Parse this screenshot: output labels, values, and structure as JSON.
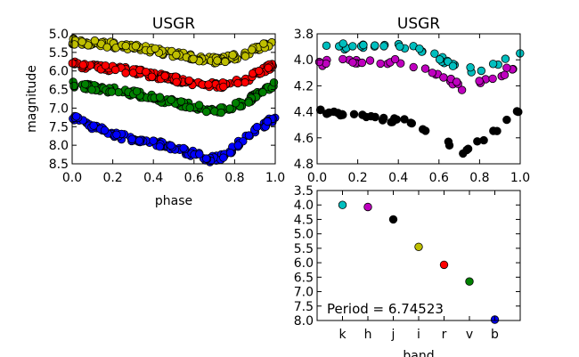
{
  "colors": {
    "yellow": "#bfbf00",
    "red": "#ff0000",
    "green": "#008000",
    "blue": "#0000ff",
    "cyan": "#00bfbf",
    "magenta": "#bf00bf",
    "black": "#000000"
  },
  "chart_data": [
    {
      "id": "left",
      "type": "scatter",
      "title": "USGR",
      "xlabel": "phase",
      "ylabel": "magnitude",
      "xlim": [
        0.0,
        1.0
      ],
      "ylim": [
        8.5,
        5.0
      ],
      "y_inverted": true,
      "xticks": [
        "0.0",
        "0.2",
        "0.4",
        "0.6",
        "0.8",
        "1.0"
      ],
      "yticks": [
        "5.0",
        "5.5",
        "6.0",
        "6.5",
        "7.0",
        "7.5",
        "8.0",
        "8.5"
      ],
      "series": [
        {
          "color_key": "yellow",
          "curve": [
            [
              0.0,
              5.2
            ],
            [
              0.3,
              5.35
            ],
            [
              0.5,
              5.55
            ],
            [
              0.65,
              5.68
            ],
            [
              0.72,
              5.72
            ],
            [
              0.85,
              5.55
            ],
            [
              1.0,
              5.2
            ]
          ]
        },
        {
          "color_key": "red",
          "curve": [
            [
              0.0,
              5.82
            ],
            [
              0.3,
              6.0
            ],
            [
              0.5,
              6.22
            ],
            [
              0.65,
              6.36
            ],
            [
              0.72,
              6.4
            ],
            [
              0.85,
              6.25
            ],
            [
              1.0,
              5.82
            ]
          ]
        },
        {
          "color_key": "green",
          "curve": [
            [
              0.0,
              6.35
            ],
            [
              0.3,
              6.6
            ],
            [
              0.5,
              6.85
            ],
            [
              0.65,
              7.02
            ],
            [
              0.72,
              7.08
            ],
            [
              0.85,
              6.85
            ],
            [
              1.0,
              6.35
            ]
          ]
        },
        {
          "color_key": "blue",
          "curve": [
            [
              0.0,
              7.25
            ],
            [
              0.2,
              7.72
            ],
            [
              0.4,
              7.92
            ],
            [
              0.55,
              8.15
            ],
            [
              0.68,
              8.38
            ],
            [
              0.75,
              8.3
            ],
            [
              0.85,
              7.8
            ],
            [
              1.0,
              7.25
            ]
          ]
        }
      ]
    },
    {
      "id": "right",
      "type": "scatter",
      "title": "USGR",
      "xlabel": "",
      "ylabel": "",
      "xlim": [
        0.0,
        1.0
      ],
      "ylim": [
        4.8,
        3.8
      ],
      "y_inverted": true,
      "xticks": [
        "0.0",
        "0.2",
        "0.4",
        "0.6",
        "0.8",
        "1.0"
      ],
      "yticks": [
        "3.8",
        "4.0",
        "4.2",
        "4.4",
        "4.6",
        "4.8"
      ],
      "series": [
        {
          "color_key": "cyan",
          "curve": [
            [
              0.0,
              3.92
            ],
            [
              0.25,
              3.88
            ],
            [
              0.45,
              3.9
            ],
            [
              0.55,
              3.95
            ],
            [
              0.65,
              4.02
            ],
            [
              0.75,
              4.08
            ],
            [
              0.85,
              4.05
            ],
            [
              1.0,
              3.95
            ]
          ]
        },
        {
          "color_key": "magenta",
          "curve": [
            [
              0.0,
              4.03
            ],
            [
              0.25,
              4.0
            ],
            [
              0.45,
              4.02
            ],
            [
              0.55,
              4.07
            ],
            [
              0.65,
              4.15
            ],
            [
              0.72,
              4.22
            ],
            [
              0.85,
              4.15
            ],
            [
              1.0,
              4.03
            ]
          ]
        },
        {
          "color_key": "black",
          "curve": [
            [
              0.0,
              4.4
            ],
            [
              0.25,
              4.42
            ],
            [
              0.45,
              4.48
            ],
            [
              0.55,
              4.55
            ],
            [
              0.65,
              4.65
            ],
            [
              0.72,
              4.72
            ],
            [
              0.85,
              4.58
            ],
            [
              1.0,
              4.4
            ]
          ]
        }
      ]
    },
    {
      "id": "bottom",
      "type": "scatter",
      "title": "",
      "xlabel": "band",
      "ylabel": "",
      "ylim": [
        8.0,
        3.5
      ],
      "y_inverted": true,
      "categories": [
        "k",
        "h",
        "j",
        "i",
        "r",
        "v",
        "b"
      ],
      "yticks": [
        "3.5",
        "4.0",
        "4.5",
        "5.0",
        "5.5",
        "6.0",
        "6.5",
        "7.0",
        "7.5",
        "8.0"
      ],
      "values": [
        4.0,
        4.07,
        4.5,
        5.45,
        6.07,
        6.65,
        7.97
      ],
      "point_color_keys": [
        "cyan",
        "magenta",
        "black",
        "yellow",
        "red",
        "green",
        "blue"
      ],
      "annotation": "Period = 6.74523"
    }
  ]
}
